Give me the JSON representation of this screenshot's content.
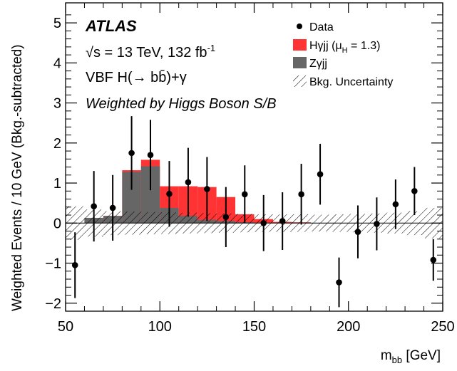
{
  "chart_data": {
    "type": "bar",
    "xlabel": "m_bb [GeV]",
    "xlabel_main": "m",
    "xlabel_sub": "bb",
    "xlabel_unit": " [GeV]",
    "ylabel": "Weighted Events / 10 GeV (Bkg.-subtracted)",
    "xlim": [
      50,
      250
    ],
    "ylim": [
      -2.2,
      5.5
    ],
    "xticks": [
      50,
      100,
      150,
      200,
      250
    ],
    "yticks": [
      -2,
      -1,
      0,
      1,
      2,
      3,
      4,
      5
    ],
    "xtick_labels": [
      "50",
      "100",
      "150",
      "200",
      "250"
    ],
    "ytick_labels": [
      "−2",
      "−1",
      "0",
      "1",
      "2",
      "3",
      "4",
      "5"
    ],
    "bin_edges": [
      50,
      60,
      70,
      80,
      90,
      100,
      110,
      120,
      130,
      140,
      150,
      160,
      170,
      180,
      190,
      200,
      210,
      220,
      230,
      240,
      250
    ],
    "series": [
      {
        "name": "Hγjj (μH = 1.3)",
        "color": "#ff3333",
        "values": [
          0.0,
          0.13,
          0.18,
          1.32,
          1.58,
          0.92,
          0.92,
          0.9,
          0.65,
          0.22,
          0.1,
          0.03,
          0.02,
          0.0,
          0.0,
          0.0,
          0.0,
          0.0,
          0.0,
          0.0
        ]
      },
      {
        "name": "Zγjj",
        "color": "#666666",
        "values": [
          0.0,
          0.13,
          0.18,
          1.28,
          1.42,
          0.38,
          0.18,
          0.08,
          0.05,
          0.02,
          0.0,
          0.0,
          0.0,
          0.0,
          0.0,
          0.0,
          0.0,
          0.0,
          0.0,
          0.0
        ]
      }
    ],
    "data_points": {
      "name": "Data",
      "x": [
        55,
        65,
        75,
        85,
        95,
        105,
        115,
        125,
        135,
        145,
        155,
        165,
        175,
        185,
        195,
        205,
        215,
        225,
        235,
        245
      ],
      "y": [
        -1.05,
        0.42,
        0.38,
        1.75,
        1.7,
        0.73,
        1.02,
        0.85,
        0.15,
        0.72,
        0.0,
        0.05,
        0.72,
        1.22,
        -1.48,
        -0.22,
        -0.02,
        0.47,
        0.8,
        -0.92
      ],
      "err": [
        0.82,
        0.88,
        0.82,
        0.92,
        0.88,
        0.82,
        0.86,
        0.8,
        0.75,
        0.72,
        0.7,
        0.72,
        0.76,
        0.76,
        0.62,
        0.66,
        0.66,
        0.62,
        0.6,
        0.52
      ]
    },
    "uncertainty_band": {
      "name": "Bkg. Uncertainty",
      "values": [
        0.42,
        0.34,
        0.3,
        0.29,
        0.28,
        0.27,
        0.26,
        0.25,
        0.24,
        0.23,
        0.22,
        0.22,
        0.22,
        0.21,
        0.22,
        0.23,
        0.24,
        0.26,
        0.3,
        0.38
      ]
    },
    "legend_placement": "top-right",
    "grid": false
  },
  "legend": {
    "data_label": "Data",
    "signal_label_main": "Hγjj (μ",
    "signal_label_sub": "H",
    "signal_label_tail": " = 1.3)",
    "bkg_label": "Zγjj",
    "unc_label": "Bkg. Uncertainty"
  },
  "annotations": {
    "experiment": "ATLAS",
    "energy_prefix": "√s = 13 TeV, 132 fb",
    "energy_sup": "-1",
    "process": "VBF H(→ bb̄)+γ",
    "weighting": "Weighted by Higgs Boson S/B"
  }
}
